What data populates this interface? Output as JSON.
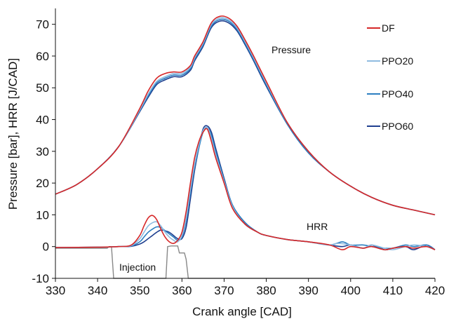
{
  "chart_data": {
    "type": "line",
    "xlabel": "Crank angle [CAD]",
    "ylabel": "Pressure [bar], HRR [J/CAD]",
    "xlim": [
      330,
      420
    ],
    "ylim": [
      -10,
      75
    ],
    "xticks": [
      330,
      340,
      350,
      360,
      370,
      380,
      390,
      400,
      410,
      420
    ],
    "yticks": [
      -10,
      0,
      10,
      20,
      30,
      40,
      50,
      60,
      70
    ],
    "xtick_labels": [
      "330",
      "340",
      "350",
      "360",
      "370",
      "380",
      "390",
      "400",
      "410",
      "420"
    ],
    "ytick_labels": [
      "-10",
      "0",
      "10",
      "20",
      "30",
      "40",
      "50",
      "60",
      "70"
    ],
    "grid": false,
    "legend_position": "right",
    "annotations": [
      {
        "text": "Pressure",
        "x": 392,
        "y": 65
      },
      {
        "text": "HRR",
        "x": 392,
        "y": 5
      },
      {
        "text": "Injection",
        "x": 348,
        "y": -7
      }
    ],
    "series": [
      {
        "name": "DF",
        "color": "#d62728",
        "pressure": [
          [
            330,
            16.5
          ],
          [
            335,
            19.5
          ],
          [
            340,
            24.5
          ],
          [
            345,
            31.5
          ],
          [
            350,
            43.5
          ],
          [
            352,
            49
          ],
          [
            354,
            53
          ],
          [
            356,
            54.5
          ],
          [
            358,
            55
          ],
          [
            360,
            55
          ],
          [
            362,
            57
          ],
          [
            363,
            60
          ],
          [
            365,
            64.5
          ],
          [
            367,
            70.5
          ],
          [
            369,
            72.5
          ],
          [
            371,
            72
          ],
          [
            373,
            69.5
          ],
          [
            375,
            65
          ],
          [
            377,
            60
          ],
          [
            380,
            52
          ],
          [
            385,
            39
          ],
          [
            390,
            30
          ],
          [
            395,
            23.5
          ],
          [
            400,
            19
          ],
          [
            405,
            15.5
          ],
          [
            410,
            13
          ],
          [
            415,
            11.5
          ],
          [
            420,
            10
          ]
        ],
        "hrr": [
          [
            330,
            -0.3
          ],
          [
            340,
            -0.2
          ],
          [
            345,
            0
          ],
          [
            348,
            0.5
          ],
          [
            350,
            3.5
          ],
          [
            351,
            6.5
          ],
          [
            352,
            9
          ],
          [
            353,
            9.8
          ],
          [
            354,
            8.5
          ],
          [
            355,
            5.5
          ],
          [
            356,
            3
          ],
          [
            357,
            1.5
          ],
          [
            358,
            1
          ],
          [
            359,
            2
          ],
          [
            360,
            4.5
          ],
          [
            361,
            11
          ],
          [
            362,
            20
          ],
          [
            363,
            28
          ],
          [
            364,
            33
          ],
          [
            365,
            36
          ],
          [
            366,
            37
          ],
          [
            367,
            33
          ],
          [
            368,
            28
          ],
          [
            370,
            20
          ],
          [
            372,
            12
          ],
          [
            375,
            7
          ],
          [
            378,
            4.5
          ],
          [
            380,
            3.5
          ],
          [
            385,
            2.2
          ],
          [
            390,
            1.5
          ],
          [
            395,
            0.5
          ],
          [
            398,
            -1
          ],
          [
            400,
            0
          ],
          [
            403,
            -0.5
          ],
          [
            405,
            0
          ],
          [
            408,
            -1
          ],
          [
            410,
            -0.5
          ],
          [
            413,
            0
          ],
          [
            415,
            -0.5
          ],
          [
            418,
            0
          ],
          [
            420,
            -1
          ]
        ]
      },
      {
        "name": "PPO20",
        "color": "#8fbbe0",
        "pressure": [
          [
            330,
            16.5
          ],
          [
            335,
            19.5
          ],
          [
            340,
            24.5
          ],
          [
            345,
            31.5
          ],
          [
            350,
            43
          ],
          [
            352,
            48
          ],
          [
            354,
            52
          ],
          [
            356,
            53.5
          ],
          [
            358,
            54.5
          ],
          [
            360,
            54.5
          ],
          [
            362,
            56.5
          ],
          [
            363,
            59.5
          ],
          [
            365,
            64
          ],
          [
            367,
            70
          ],
          [
            369,
            72
          ],
          [
            371,
            71.5
          ],
          [
            373,
            69
          ],
          [
            375,
            64.5
          ],
          [
            377,
            59.5
          ],
          [
            380,
            51.5
          ],
          [
            385,
            39
          ],
          [
            390,
            30
          ],
          [
            395,
            23.5
          ],
          [
            400,
            19
          ],
          [
            405,
            15.5
          ],
          [
            410,
            13
          ],
          [
            415,
            11.5
          ],
          [
            420,
            10
          ]
        ],
        "hrr": [
          [
            330,
            -0.3
          ],
          [
            340,
            -0.2
          ],
          [
            345,
            0
          ],
          [
            348,
            0.3
          ],
          [
            350,
            2.5
          ],
          [
            351,
            4.5
          ],
          [
            352,
            6.5
          ],
          [
            353,
            7.5
          ],
          [
            354,
            7.8
          ],
          [
            355,
            6.5
          ],
          [
            356,
            4.5
          ],
          [
            357,
            3
          ],
          [
            358,
            2
          ],
          [
            359,
            1.5
          ],
          [
            360,
            3.5
          ],
          [
            361,
            9
          ],
          [
            362,
            18
          ],
          [
            363,
            26
          ],
          [
            364,
            32
          ],
          [
            365,
            36.5
          ],
          [
            366,
            37.5
          ],
          [
            367,
            34
          ],
          [
            368,
            29
          ],
          [
            370,
            20.5
          ],
          [
            372,
            12.5
          ],
          [
            375,
            7
          ],
          [
            378,
            4.5
          ],
          [
            380,
            3.5
          ],
          [
            385,
            2.2
          ],
          [
            390,
            1.5
          ],
          [
            395,
            0.5
          ],
          [
            397,
            1
          ],
          [
            400,
            0.5
          ],
          [
            403,
            -0.5
          ],
          [
            405,
            0.5
          ],
          [
            408,
            -0.5
          ],
          [
            410,
            -1
          ],
          [
            413,
            0
          ],
          [
            415,
            0.5
          ],
          [
            418,
            0
          ],
          [
            420,
            -1
          ]
        ]
      },
      {
        "name": "PPO40",
        "color": "#2c7fc1",
        "pressure": [
          [
            330,
            16.5
          ],
          [
            335,
            19.5
          ],
          [
            340,
            24.5
          ],
          [
            345,
            31.5
          ],
          [
            350,
            42.8
          ],
          [
            352,
            47.5
          ],
          [
            354,
            51.5
          ],
          [
            356,
            53
          ],
          [
            358,
            54
          ],
          [
            360,
            54
          ],
          [
            362,
            56
          ],
          [
            363,
            59
          ],
          [
            365,
            63.5
          ],
          [
            367,
            69.5
          ],
          [
            369,
            71.5
          ],
          [
            371,
            71
          ],
          [
            373,
            68.5
          ],
          [
            375,
            64
          ],
          [
            377,
            59
          ],
          [
            380,
            51
          ],
          [
            385,
            38.5
          ],
          [
            390,
            29.5
          ],
          [
            395,
            23.5
          ],
          [
            400,
            19
          ],
          [
            405,
            15.5
          ],
          [
            410,
            13
          ],
          [
            415,
            11.5
          ],
          [
            420,
            10
          ]
        ],
        "hrr": [
          [
            330,
            -0.3
          ],
          [
            340,
            -0.2
          ],
          [
            345,
            0
          ],
          [
            348,
            0.2
          ],
          [
            350,
            1.5
          ],
          [
            351,
            3
          ],
          [
            352,
            4.5
          ],
          [
            353,
            5.5
          ],
          [
            354,
            6.2
          ],
          [
            355,
            6
          ],
          [
            356,
            5
          ],
          [
            357,
            4
          ],
          [
            358,
            3
          ],
          [
            359,
            2
          ],
          [
            360,
            3
          ],
          [
            361,
            8
          ],
          [
            362,
            17
          ],
          [
            363,
            25
          ],
          [
            364,
            31
          ],
          [
            365,
            36
          ],
          [
            366,
            37.5
          ],
          [
            367,
            35
          ],
          [
            368,
            30
          ],
          [
            370,
            21
          ],
          [
            372,
            13
          ],
          [
            375,
            7.5
          ],
          [
            378,
            4.5
          ],
          [
            380,
            3.5
          ],
          [
            385,
            2.2
          ],
          [
            390,
            1.5
          ],
          [
            395,
            0.5
          ],
          [
            398,
            1.5
          ],
          [
            400,
            0.5
          ],
          [
            403,
            0.5
          ],
          [
            405,
            0
          ],
          [
            408,
            -0.5
          ],
          [
            410,
            -0.5
          ],
          [
            413,
            0.5
          ],
          [
            415,
            0
          ],
          [
            418,
            0.5
          ],
          [
            420,
            -1
          ]
        ]
      },
      {
        "name": "PPO60",
        "color": "#1f3f8f",
        "pressure": [
          [
            330,
            16.5
          ],
          [
            335,
            19.5
          ],
          [
            340,
            24.5
          ],
          [
            345,
            31.5
          ],
          [
            350,
            42.5
          ],
          [
            352,
            47
          ],
          [
            354,
            51
          ],
          [
            356,
            52.5
          ],
          [
            358,
            53.5
          ],
          [
            360,
            53.5
          ],
          [
            362,
            55.5
          ],
          [
            363,
            58.5
          ],
          [
            365,
            63
          ],
          [
            367,
            69
          ],
          [
            369,
            71
          ],
          [
            371,
            70.5
          ],
          [
            373,
            68
          ],
          [
            375,
            63.5
          ],
          [
            377,
            58.5
          ],
          [
            380,
            50.5
          ],
          [
            385,
            38.5
          ],
          [
            390,
            29.5
          ],
          [
            395,
            23.5
          ],
          [
            400,
            19
          ],
          [
            405,
            15.5
          ],
          [
            410,
            13
          ],
          [
            415,
            11.5
          ],
          [
            420,
            10
          ]
        ],
        "hrr": [
          [
            330,
            -0.3
          ],
          [
            340,
            -0.2
          ],
          [
            345,
            0
          ],
          [
            348,
            0.1
          ],
          [
            350,
            0.8
          ],
          [
            351,
            1.5
          ],
          [
            352,
            2.5
          ],
          [
            353,
            3.5
          ],
          [
            354,
            4.5
          ],
          [
            355,
            5.2
          ],
          [
            356,
            5
          ],
          [
            357,
            4.5
          ],
          [
            358,
            3.5
          ],
          [
            359,
            2.5
          ],
          [
            360,
            2.5
          ],
          [
            361,
            6
          ],
          [
            362,
            15
          ],
          [
            363,
            24
          ],
          [
            364,
            31
          ],
          [
            365,
            37
          ],
          [
            366,
            38
          ],
          [
            367,
            36
          ],
          [
            368,
            31
          ],
          [
            370,
            21.5
          ],
          [
            372,
            13
          ],
          [
            375,
            7.5
          ],
          [
            378,
            4.5
          ],
          [
            380,
            3.5
          ],
          [
            385,
            2.2
          ],
          [
            390,
            1.5
          ],
          [
            395,
            0.5
          ],
          [
            398,
            0
          ],
          [
            400,
            0.5
          ],
          [
            403,
            -0.5
          ],
          [
            405,
            0.5
          ],
          [
            408,
            -1
          ],
          [
            410,
            -0.5
          ],
          [
            413,
            0
          ],
          [
            415,
            -1
          ],
          [
            418,
            0.5
          ],
          [
            420,
            -1
          ]
        ]
      }
    ],
    "injection": {
      "name": "Injection",
      "color": "#888888",
      "points": [
        [
          330,
          -0.5
        ],
        [
          342.3,
          -0.5
        ],
        [
          342.7,
          0
        ],
        [
          343.3,
          0
        ],
        [
          343.8,
          -10
        ],
        [
          356.2,
          -10
        ],
        [
          356.6,
          0
        ],
        [
          357.4,
          0.2
        ],
        [
          359,
          0.2
        ],
        [
          359.4,
          -2
        ],
        [
          360.6,
          -2
        ],
        [
          361,
          -4
        ],
        [
          361.5,
          -10
        ],
        [
          420,
          -10
        ]
      ]
    }
  }
}
